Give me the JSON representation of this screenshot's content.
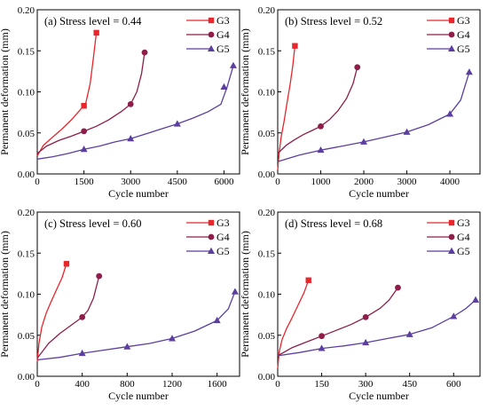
{
  "colors": {
    "G3": "#e8262b",
    "G4": "#8e1d4a",
    "G5": "#5b3ea0"
  },
  "markers": {
    "G3": "square",
    "G4": "circle",
    "G5": "triangle"
  },
  "chart_data": [
    {
      "type": "line",
      "title": "(a) Stress level = 0.44",
      "xlabel": "Cycle number",
      "ylabel": "Permanent deformation (mm)",
      "xlim": [
        0,
        6500
      ],
      "ylim": [
        0,
        0.2
      ],
      "xticks": [
        0,
        1500,
        3000,
        4500,
        6000
      ],
      "xtick_labels": [
        "0",
        "1500",
        "3000",
        "4500",
        "6000"
      ],
      "yticks": [
        0,
        0.05,
        0.1,
        0.15,
        0.2
      ],
      "ytick_labels": [
        "0.00",
        "0.05",
        "0.10",
        "0.15",
        "0.20"
      ],
      "legend": "top-right",
      "grid": false,
      "series": [
        {
          "name": "G3",
          "x": [
            0,
            200,
            500,
            800,
            1100,
            1400,
            1550,
            1700,
            1800,
            1900
          ],
          "y": [
            0.022,
            0.035,
            0.045,
            0.055,
            0.066,
            0.079,
            0.085,
            0.11,
            0.14,
            0.172
          ],
          "marker_x": [
            1500,
            1900
          ],
          "marker_y": [
            0.083,
            0.172
          ]
        },
        {
          "name": "G4",
          "x": [
            0,
            300,
            700,
            1100,
            1500,
            1900,
            2300,
            2700,
            3000,
            3200,
            3350,
            3450
          ],
          "y": [
            0.025,
            0.034,
            0.041,
            0.046,
            0.052,
            0.058,
            0.066,
            0.076,
            0.085,
            0.1,
            0.122,
            0.148
          ],
          "marker_x": [
            1500,
            3000,
            3450
          ],
          "marker_y": [
            0.052,
            0.085,
            0.148
          ]
        },
        {
          "name": "G5",
          "x": [
            0,
            500,
            1000,
            1500,
            2000,
            2500,
            3000,
            3500,
            4000,
            4500,
            5000,
            5500,
            5900,
            6100,
            6300
          ],
          "y": [
            0.018,
            0.021,
            0.025,
            0.03,
            0.034,
            0.039,
            0.043,
            0.049,
            0.055,
            0.061,
            0.068,
            0.076,
            0.085,
            0.106,
            0.132
          ],
          "marker_x": [
            1500,
            3000,
            4500,
            6000,
            6300
          ],
          "marker_y": [
            0.03,
            0.043,
            0.061,
            0.106,
            0.132
          ]
        }
      ]
    },
    {
      "type": "line",
      "title": "(b) Stress level = 0.52",
      "xlabel": "Cycle number",
      "ylabel": "Permanent deformation (mm)",
      "xlim": [
        0,
        4700
      ],
      "ylim": [
        0,
        0.2
      ],
      "xticks": [
        0,
        1000,
        2000,
        3000,
        4000
      ],
      "xtick_labels": [
        "0",
        "1000",
        "2000",
        "3000",
        "4000"
      ],
      "yticks": [
        0,
        0.05,
        0.1,
        0.15,
        0.2
      ],
      "ytick_labels": [
        "0.00",
        "0.05",
        "0.10",
        "0.15",
        "0.20"
      ],
      "legend": "top-right",
      "grid": false,
      "series": [
        {
          "name": "G3",
          "x": [
            0,
            30,
            80,
            150,
            220,
            290,
            350,
            400
          ],
          "y": [
            0.005,
            0.025,
            0.045,
            0.065,
            0.088,
            0.11,
            0.132,
            0.156
          ],
          "marker_x": [
            400
          ],
          "marker_y": [
            0.156
          ]
        },
        {
          "name": "G4",
          "x": [
            0,
            200,
            400,
            600,
            800,
            1000,
            1200,
            1400,
            1600,
            1750,
            1850
          ],
          "y": [
            0.025,
            0.035,
            0.042,
            0.048,
            0.053,
            0.058,
            0.066,
            0.077,
            0.092,
            0.11,
            0.13
          ],
          "marker_x": [
            1000,
            1850
          ],
          "marker_y": [
            0.058,
            0.13
          ]
        },
        {
          "name": "G5",
          "x": [
            0,
            500,
            1000,
            1500,
            2000,
            2500,
            3000,
            3500,
            4000,
            4250,
            4450
          ],
          "y": [
            0.015,
            0.023,
            0.029,
            0.034,
            0.039,
            0.045,
            0.051,
            0.06,
            0.073,
            0.09,
            0.124
          ],
          "marker_x": [
            1000,
            2000,
            3000,
            4000,
            4450
          ],
          "marker_y": [
            0.029,
            0.039,
            0.051,
            0.073,
            0.124
          ]
        }
      ]
    },
    {
      "type": "line",
      "title": "(c) Stress level = 0.60",
      "xlabel": "Cycle number",
      "ylabel": "Permanent deformation (mm)",
      "xlim": [
        0,
        1800
      ],
      "ylim": [
        0,
        0.2
      ],
      "xticks": [
        0,
        400,
        800,
        1200,
        1600
      ],
      "xtick_labels": [
        "0",
        "400",
        "800",
        "1200",
        "1600"
      ],
      "yticks": [
        0,
        0.05,
        0.1,
        0.15,
        0.2
      ],
      "ytick_labels": [
        "0.00",
        "0.05",
        "0.10",
        "0.15",
        "0.20"
      ],
      "legend": "top-right",
      "grid": false,
      "series": [
        {
          "name": "G3",
          "x": [
            0,
            15,
            40,
            80,
            120,
            170,
            220,
            260
          ],
          "y": [
            0.018,
            0.04,
            0.06,
            0.077,
            0.09,
            0.105,
            0.12,
            0.137
          ],
          "marker_x": [
            260
          ],
          "marker_y": [
            0.137
          ]
        },
        {
          "name": "G4",
          "x": [
            0,
            100,
            200,
            300,
            400,
            450,
            500,
            550
          ],
          "y": [
            0.022,
            0.04,
            0.052,
            0.062,
            0.072,
            0.08,
            0.095,
            0.122
          ],
          "marker_x": [
            400,
            550
          ],
          "marker_y": [
            0.072,
            0.122
          ]
        },
        {
          "name": "G5",
          "x": [
            0,
            200,
            400,
            600,
            800,
            1000,
            1200,
            1400,
            1600,
            1700,
            1760
          ],
          "y": [
            0.02,
            0.023,
            0.028,
            0.032,
            0.036,
            0.04,
            0.046,
            0.055,
            0.068,
            0.082,
            0.103
          ],
          "marker_x": [
            400,
            800,
            1200,
            1600,
            1760
          ],
          "marker_y": [
            0.028,
            0.036,
            0.046,
            0.068,
            0.103
          ]
        }
      ]
    },
    {
      "type": "line",
      "title": "(d) Stress level = 0.68",
      "xlabel": "Cycle number",
      "ylabel": "Permanent deformation (mm)",
      "xlim": [
        0,
        690
      ],
      "ylim": [
        0,
        0.2
      ],
      "xticks": [
        0,
        150,
        300,
        450,
        600
      ],
      "xtick_labels": [
        "0",
        "150",
        "300",
        "450",
        "600"
      ],
      "yticks": [
        0,
        0.05,
        0.1,
        0.15,
        0.2
      ],
      "ytick_labels": [
        "0.00",
        "0.05",
        "0.10",
        "0.15",
        "0.20"
      ],
      "legend": "top-right",
      "grid": false,
      "series": [
        {
          "name": "G3",
          "x": [
            0,
            5,
            15,
            30,
            50,
            70,
            90,
            105
          ],
          "y": [
            0.01,
            0.03,
            0.045,
            0.058,
            0.072,
            0.087,
            0.102,
            0.117
          ],
          "marker_x": [
            105
          ],
          "marker_y": [
            0.117
          ]
        },
        {
          "name": "G4",
          "x": [
            0,
            50,
            100,
            150,
            200,
            250,
            300,
            350,
            380,
            410
          ],
          "y": [
            0.025,
            0.035,
            0.042,
            0.049,
            0.056,
            0.063,
            0.072,
            0.083,
            0.093,
            0.108
          ],
          "marker_x": [
            150,
            300,
            410
          ],
          "marker_y": [
            0.049,
            0.072,
            0.108
          ]
        },
        {
          "name": "G5",
          "x": [
            0,
            75,
            150,
            225,
            300,
            375,
            450,
            525,
            600,
            640,
            675
          ],
          "y": [
            0.025,
            0.029,
            0.034,
            0.037,
            0.041,
            0.046,
            0.051,
            0.059,
            0.073,
            0.082,
            0.093
          ],
          "marker_x": [
            150,
            300,
            450,
            600,
            675
          ],
          "marker_y": [
            0.034,
            0.041,
            0.051,
            0.073,
            0.093
          ]
        }
      ]
    }
  ]
}
